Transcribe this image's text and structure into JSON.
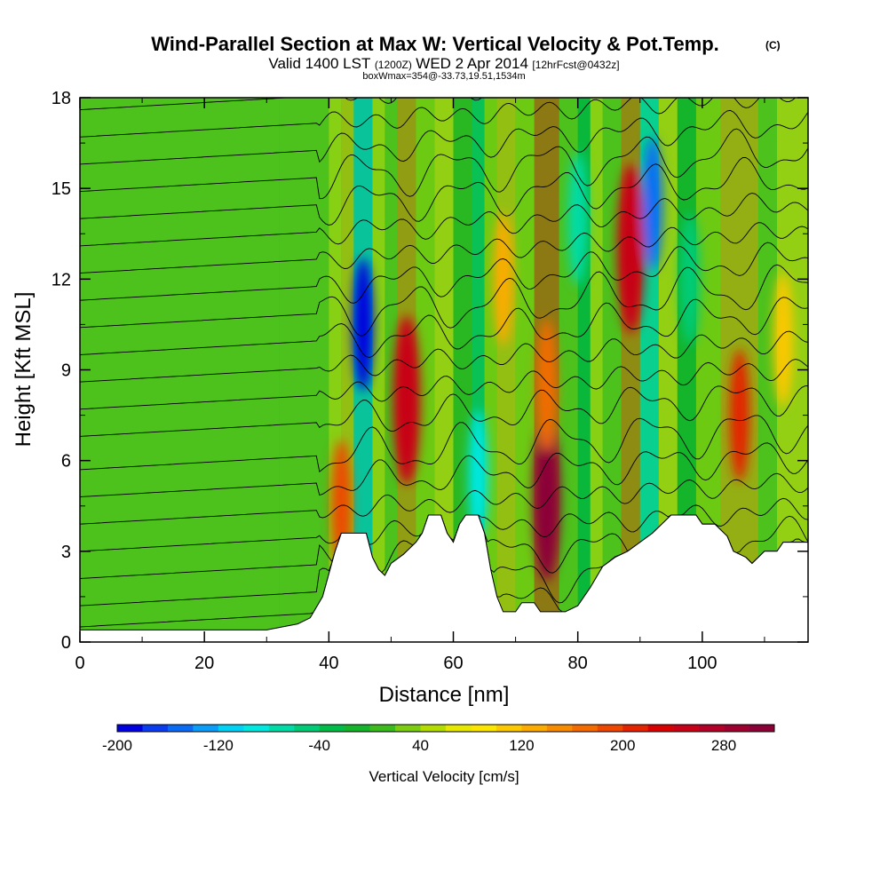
{
  "title": {
    "main": "Wind-Parallel Section at Max W: Vertical Velocity & Pot.Temp.",
    "copyright": "(C)",
    "valid_prefix": "Valid 1400 LST",
    "valid_utc": "(1200Z)",
    "valid_date": "WED 2 Apr 2014",
    "forecast": "[12hrFcst@0432z]",
    "info": "boxWmax=354@-33.73,19.51,1534m"
  },
  "chart_data": {
    "type": "heatmap",
    "title": "Wind-Parallel Section at Max W: Vertical Velocity & Pot.Temp.",
    "xlabel": "Distance [nm]",
    "ylabel": "Height [Kft MSL]",
    "xlim": [
      0,
      117
    ],
    "ylim": [
      0,
      18
    ],
    "x_ticks": [
      0,
      20,
      40,
      60,
      80,
      100
    ],
    "y_ticks": [
      0,
      3,
      6,
      9,
      12,
      15,
      18
    ],
    "x_tick_labels": [
      "0",
      "20",
      "40",
      "60",
      "80",
      "100"
    ],
    "y_tick_labels": [
      "0",
      "3",
      "6",
      "9",
      "12",
      "15",
      "18"
    ],
    "colorbar": {
      "title": "Vertical Velocity [cm/s]",
      "min": -200,
      "max": 320,
      "step": 20,
      "labels": [
        "-200",
        "-120",
        "-40",
        "40",
        "120",
        "200",
        "280"
      ],
      "label_values": [
        -200,
        -120,
        -40,
        40,
        120,
        200,
        280
      ],
      "colors": [
        "#0000e0",
        "#0a3cf0",
        "#0a6cf5",
        "#0a9ef8",
        "#00d2f5",
        "#00e8e0",
        "#00dca8",
        "#00cc78",
        "#00bc48",
        "#14b42c",
        "#3cbc1c",
        "#7ccc10",
        "#b4dc00",
        "#e6e800",
        "#fce600",
        "#fcc800",
        "#fcac00",
        "#f88c00",
        "#f46c00",
        "#ee4800",
        "#e42400",
        "#d80000",
        "#c80018",
        "#b40028",
        "#a00030",
        "#8c0038"
      ]
    },
    "terrain_kft": [
      [
        0,
        0.4
      ],
      [
        10,
        0.4
      ],
      [
        20,
        0.4
      ],
      [
        30,
        0.4
      ],
      [
        35,
        0.6
      ],
      [
        37,
        0.8
      ],
      [
        39,
        1.5
      ],
      [
        41,
        3.0
      ],
      [
        42,
        3.6
      ],
      [
        46,
        3.6
      ],
      [
        47,
        2.8
      ],
      [
        48,
        2.4
      ],
      [
        49,
        2.2
      ],
      [
        50,
        2.6
      ],
      [
        52,
        2.9
      ],
      [
        54,
        3.3
      ],
      [
        55,
        3.6
      ],
      [
        56,
        4.2
      ],
      [
        58,
        4.2
      ],
      [
        59,
        3.6
      ],
      [
        60,
        3.3
      ],
      [
        61,
        3.9
      ],
      [
        62,
        4.2
      ],
      [
        64,
        4.2
      ],
      [
        65,
        3.6
      ],
      [
        66,
        2.4
      ],
      [
        67,
        1.5
      ],
      [
        68,
        1.0
      ],
      [
        70,
        1.0
      ],
      [
        71,
        1.3
      ],
      [
        73,
        1.3
      ],
      [
        74,
        1.0
      ],
      [
        76,
        1.0
      ],
      [
        78,
        1.0
      ],
      [
        80,
        1.2
      ],
      [
        82,
        1.8
      ],
      [
        84,
        2.5
      ],
      [
        86,
        2.8
      ],
      [
        88,
        3.0
      ],
      [
        90,
        3.3
      ],
      [
        92,
        3.6
      ],
      [
        94,
        4.0
      ],
      [
        95,
        4.2
      ],
      [
        99,
        4.2
      ],
      [
        100,
        3.9
      ],
      [
        102,
        3.9
      ],
      [
        104,
        3.5
      ],
      [
        105,
        3.0
      ],
      [
        107,
        2.8
      ],
      [
        108,
        2.6
      ],
      [
        110,
        3.0
      ],
      [
        112,
        3.0
      ],
      [
        113,
        3.3
      ],
      [
        117,
        3.3
      ]
    ],
    "vertical_velocity_features": [
      {
        "x": 45.5,
        "y": 10.5,
        "w_cm_s": -200,
        "note": "downdraft"
      },
      {
        "x": 42,
        "y": 4.5,
        "w_cm_s": 180
      },
      {
        "x": 52.5,
        "y": 8.0,
        "w_cm_s": 240
      },
      {
        "x": 75,
        "y": 4.8,
        "w_cm_s": 320
      },
      {
        "x": 75,
        "y": 8.5,
        "w_cm_s": 160
      },
      {
        "x": 64,
        "y": 5.5,
        "w_cm_s": -100
      },
      {
        "x": 68,
        "y": 12,
        "w_cm_s": 120
      },
      {
        "x": 80,
        "y": 14,
        "w_cm_s": -80
      },
      {
        "x": 88.5,
        "y": 13,
        "w_cm_s": 240
      },
      {
        "x": 92,
        "y": 14.5,
        "w_cm_s": -160
      },
      {
        "x": 106,
        "y": 7.5,
        "w_cm_s": 200
      },
      {
        "x": 98,
        "y": 12,
        "w_cm_s": -60
      },
      {
        "x": 113,
        "y": 10,
        "w_cm_s": 100
      }
    ],
    "theta_contour_start_kft": [
      0.5,
      1.2,
      2.1,
      3.0,
      3.9,
      4.8,
      5.7,
      6.5,
      7.4,
      8.3,
      9.2,
      10.1,
      11.0,
      11.9,
      12.8,
      13.7,
      14.6,
      15.5,
      16.4,
      17.3
    ]
  }
}
